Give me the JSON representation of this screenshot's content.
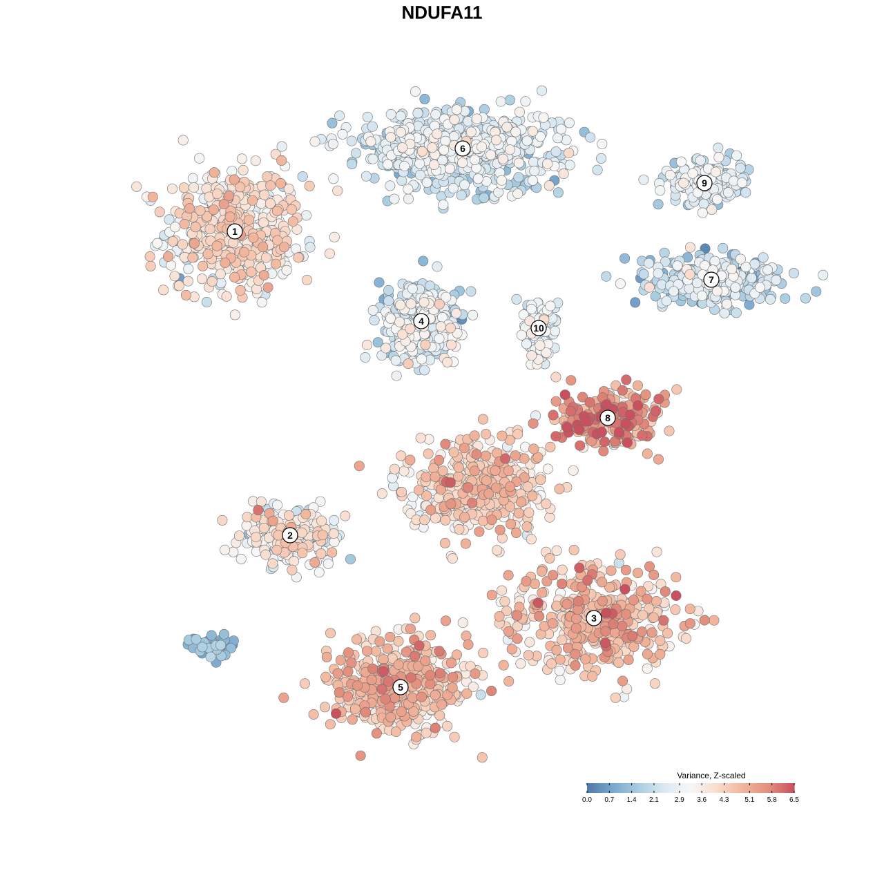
{
  "chart_data": {
    "type": "scatter",
    "title": "NDUFA11",
    "xlabel": "",
    "ylabel": "",
    "grid": false,
    "legend": {
      "title": "Variance, Z-scaled",
      "placement": "bottom-right",
      "range": [
        0.0,
        6.5
      ],
      "ticks": [
        "0.0",
        "0.7",
        "1.4",
        "2.1",
        "2.9",
        "3.6",
        "4.3",
        "5.1",
        "5.8",
        "6.5"
      ],
      "colors": [
        "#4f79a8",
        "#78a8cf",
        "#a9cde1",
        "#dbe9f2",
        "#f7f7f7",
        "#f9dccc",
        "#f2b59c",
        "#e38f7e",
        "#c9505e"
      ]
    },
    "clusters": [
      {
        "label": "1",
        "x": -30,
        "y": 32,
        "sx": 9,
        "sy": 8,
        "n": 520,
        "mean": 3.6,
        "spread": 0.7
      },
      {
        "label": "2",
        "x": -22,
        "y": -12,
        "sx": 7,
        "sy": 4,
        "n": 230,
        "mean": 3.3,
        "spread": 0.8
      },
      {
        "label": "3",
        "x": 22,
        "y": -24,
        "sx": 11,
        "sy": 7,
        "n": 420,
        "mean": 4.5,
        "spread": 0.8
      },
      {
        "label": "4",
        "x": -3,
        "y": 19,
        "sx": 5.5,
        "sy": 5.5,
        "n": 300,
        "mean": 2.4,
        "spread": 0.7
      },
      {
        "label": "5",
        "x": -6,
        "y": -34,
        "sx": 9,
        "sy": 6,
        "n": 480,
        "mean": 4.4,
        "spread": 0.7
      },
      {
        "label": "6",
        "x": 3,
        "y": 44,
        "sx": 14,
        "sy": 5,
        "n": 620,
        "mean": 2.4,
        "spread": 0.6
      },
      {
        "label": "7",
        "x": 39,
        "y": 25,
        "sx": 9,
        "sy": 3.5,
        "n": 280,
        "mean": 2.0,
        "spread": 0.7
      },
      {
        "label": "8",
        "x": 24,
        "y": 5,
        "sx": 7,
        "sy": 4,
        "n": 210,
        "mean": 5.3,
        "spread": 0.9
      },
      {
        "label": "9",
        "x": 38,
        "y": 39,
        "sx": 5,
        "sy": 2.8,
        "n": 190,
        "mean": 2.4,
        "spread": 0.6
      },
      {
        "label": "10",
        "x": 14,
        "y": 18,
        "sx": 3,
        "sy": 4,
        "n": 90,
        "mean": 2.8,
        "spread": 0.6
      },
      {
        "label": "",
        "x": 5,
        "y": -5,
        "sx": 9,
        "sy": 6,
        "n": 420,
        "mean": 4.0,
        "spread": 0.8
      },
      {
        "label": "",
        "x": -33,
        "y": -28,
        "sx": 3,
        "sy": 1.5,
        "n": 40,
        "mean": 1.0,
        "spread": 0.5
      }
    ]
  }
}
